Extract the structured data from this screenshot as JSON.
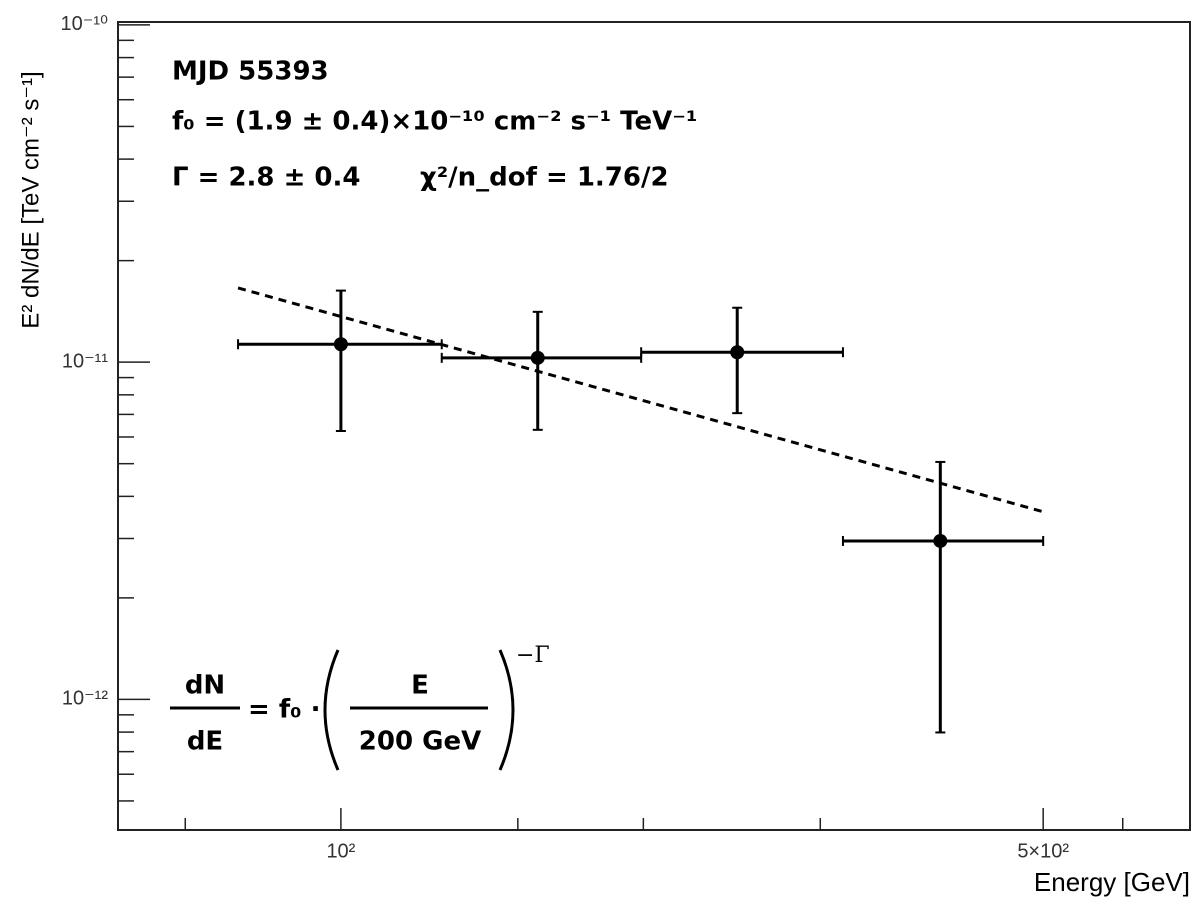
{
  "chart_data": {
    "type": "scatter",
    "x_label": "Energy [GeV]",
    "y_label": "E² dN/dE [TeV cm⁻² s⁻¹]",
    "x_log": true,
    "y_log": true,
    "xlim": [
      60,
      700
    ],
    "ylim": [
      4.1e-13,
      1.02e-10
    ],
    "xticks": [
      {
        "value": 100,
        "label": "10²"
      },
      {
        "value": 500,
        "label": "5×10²"
      }
    ],
    "xminorticks": [
      70,
      150,
      200,
      300,
      600
    ],
    "yticks": [
      {
        "value": 1e-12,
        "label": "10⁻¹²"
      },
      {
        "value": 1e-11,
        "label": "10⁻¹¹"
      },
      {
        "value": 1e-10,
        "label": "10⁻¹⁰"
      }
    ],
    "yminorticks": [
      5e-13,
      6e-13,
      7e-13,
      8e-13,
      9e-13,
      2e-12,
      3e-12,
      4e-12,
      5e-12,
      6e-12,
      7e-12,
      8e-12,
      9e-12,
      2e-11,
      3e-11,
      4e-11,
      5e-11,
      6e-11,
      7e-11,
      8e-11,
      9e-11
    ],
    "series": [
      {
        "style": "points",
        "color": "#000000",
        "x": [
          100,
          157,
          248,
          395
        ],
        "values": [
          1.13e-11,
          1.03e-11,
          1.07e-11,
          2.95e-12
        ],
        "xlow": [
          79,
          126,
          199,
          316
        ],
        "xhigh": [
          126,
          199,
          316,
          500
        ],
        "ylow": [
          6.25e-12,
          6.3e-12,
          7.06e-12,
          7.98e-13
        ],
        "yhigh": [
          1.63e-11,
          1.41e-11,
          1.45e-11,
          5.06e-12
        ]
      },
      {
        "style": "dashed",
        "color": "#000000",
        "x": [
          79,
          500
        ],
        "values": [
          1.66e-11,
          3.6e-12
        ]
      }
    ],
    "annotations": [
      "MJD   55393",
      "f₀ = (1.9 ± 0.4)×10⁻¹⁰   cm⁻² s⁻¹ TeV⁻¹",
      "Γ = 2.8 ± 0.4",
      "χ²/n_dof = 1.76/2"
    ],
    "formula": {
      "numerator": "dN",
      "denominator": "dE",
      "rhs": "= f₀ ·",
      "inner_numerator": "E",
      "inner_denominator": "200  GeV",
      "exponent": "−Γ"
    }
  }
}
